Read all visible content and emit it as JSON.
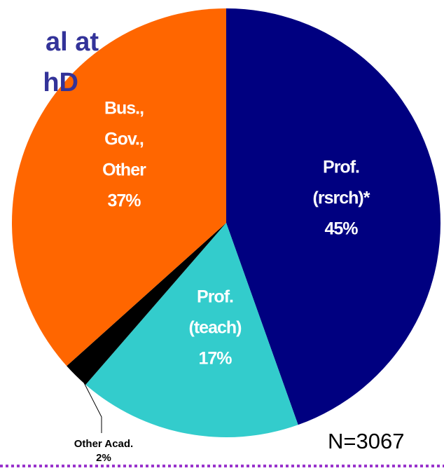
{
  "chart_data": {
    "type": "pie",
    "title": [
      "al at",
      "hD"
    ],
    "labels": [
      [
        "Prof.",
        "(rsrch)*"
      ],
      [
        "Prof.",
        "(teach)"
      ],
      [
        "Other Acad."
      ],
      [
        "Bus.,",
        "Gov.,",
        "Other"
      ]
    ],
    "values": [
      45,
      17,
      2,
      37
    ],
    "value_labels": [
      "45%",
      "17%",
      "2%",
      "37%"
    ],
    "colors": [
      "#000080",
      "#33cccc",
      "#000000",
      "#ff6600"
    ],
    "annotation": "N=3067"
  }
}
